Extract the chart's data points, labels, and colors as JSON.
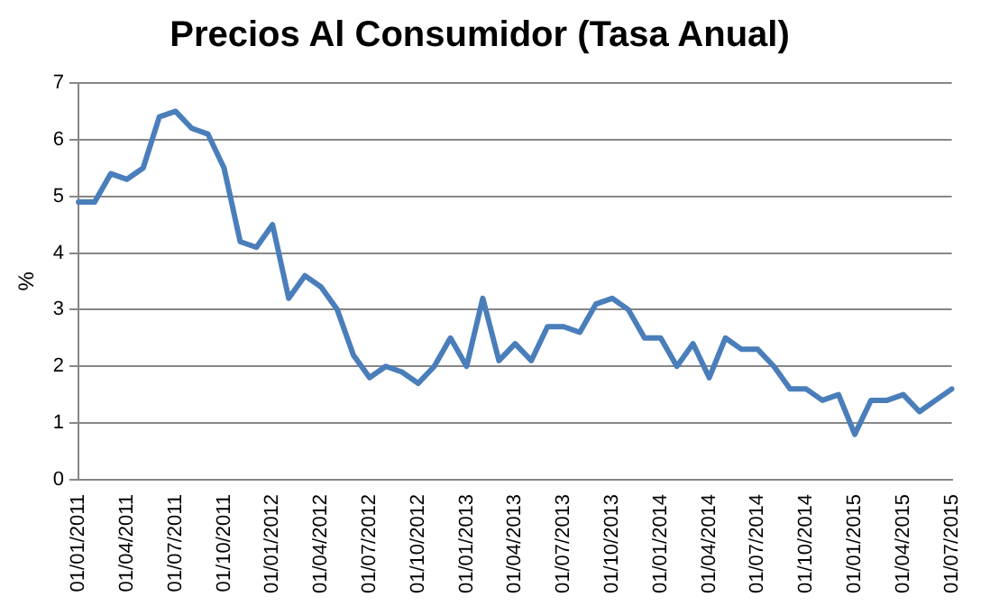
{
  "chart_data": {
    "type": "line",
    "title": "Precios Al Consumidor (Tasa Anual)",
    "ylabel": "%",
    "categories": [
      "01/01/2011",
      null,
      null,
      "01/04/2011",
      null,
      null,
      "01/07/2011",
      null,
      null,
      "01/10/2011",
      null,
      null,
      "01/01/2012",
      null,
      null,
      "01/04/2012",
      null,
      null,
      "01/07/2012",
      null,
      null,
      "01/10/2012",
      null,
      null,
      "01/01/2013",
      null,
      null,
      "01/04/2013",
      null,
      null,
      "01/07/2013",
      null,
      null,
      "01/10/2013",
      null,
      null,
      "01/01/2014",
      null,
      null,
      "01/04/2014",
      null,
      null,
      "01/07/2014",
      null,
      null,
      "01/10/2014",
      null,
      null,
      "01/01/2015",
      null,
      null,
      "01/04/2015",
      null,
      null,
      "01/07/2015"
    ],
    "series": [
      {
        "color": "#4a7ebb",
        "values": [
          4.9,
          4.9,
          5.4,
          5.3,
          5.5,
          6.4,
          6.5,
          6.2,
          6.1,
          5.5,
          4.2,
          4.1,
          4.5,
          3.2,
          3.6,
          3.4,
          3.0,
          2.2,
          1.8,
          2.0,
          1.9,
          1.7,
          2.0,
          2.5,
          2.0,
          3.2,
          2.1,
          2.4,
          2.1,
          2.7,
          2.7,
          2.6,
          3.1,
          3.2,
          3.0,
          2.5,
          2.5,
          2.0,
          2.4,
          1.8,
          2.5,
          2.3,
          2.3,
          2.0,
          1.6,
          1.6,
          1.4,
          1.5,
          0.8,
          1.4,
          1.4,
          1.5,
          1.2,
          1.4,
          1.6
        ]
      }
    ],
    "ylim": [
      0,
      7
    ],
    "yticks": [
      0,
      1,
      2,
      3,
      4,
      5,
      6,
      7
    ],
    "grid": "y",
    "legend": false,
    "marker": "none",
    "line_style": "solid"
  }
}
